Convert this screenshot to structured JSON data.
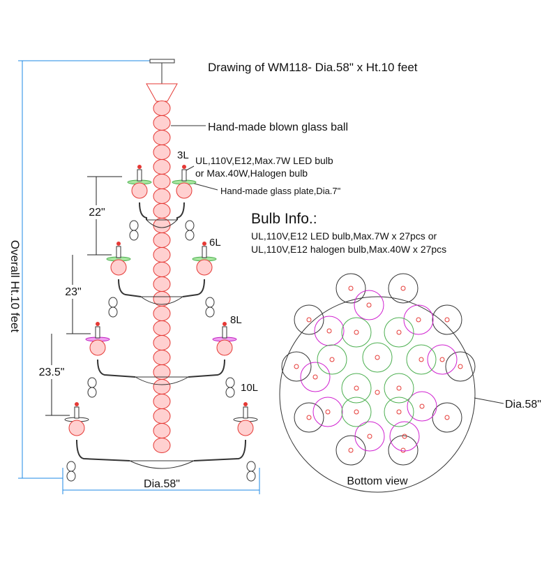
{
  "title": "Drawing of WM118- Dia.58\" x Ht.10 feet",
  "callouts": {
    "glass_ball": "Hand-made blown glass ball",
    "bulb_spec": [
      "UL,110V,E12,Max.7W LED bulb",
      "or Max.40W,Halogen bulb"
    ],
    "glass_plate": "Hand-made glass plate,Dia.7\""
  },
  "tiers": [
    {
      "label": "3L"
    },
    {
      "label": "6L"
    },
    {
      "label": "8L"
    },
    {
      "label": "10L"
    }
  ],
  "dimensions": {
    "tier_heights": [
      "22\"",
      "23\"",
      "23.5\""
    ],
    "overall_height": "Overall Ht.10 feet",
    "diameter": "Dia.58\""
  },
  "bulb_info": {
    "heading": "Bulb Info.:",
    "lines": [
      "UL,110V,E12 LED bulb,Max.7W x 27pcs or",
      "UL,110V,E12 halogen bulb,Max.40W x 27pcs"
    ]
  },
  "bottom_view": {
    "diameter": "Dia.58\"",
    "caption": "Bottom view"
  }
}
